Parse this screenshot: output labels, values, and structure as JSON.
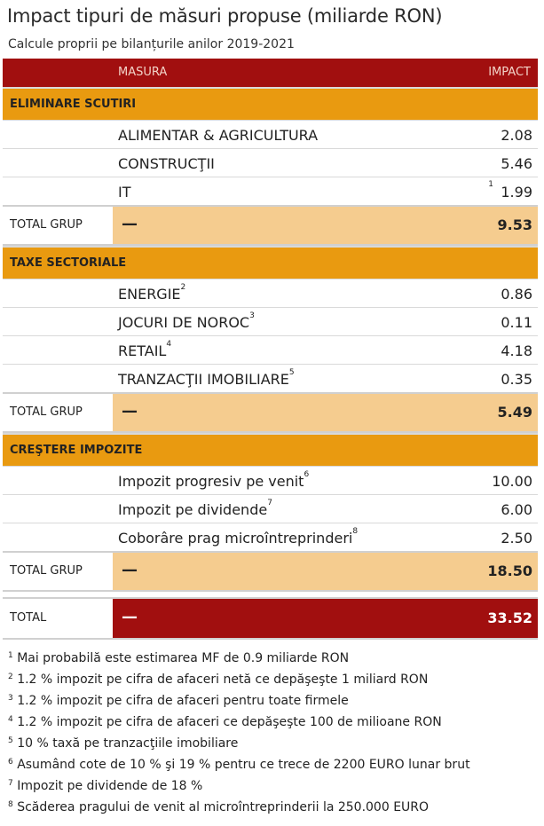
{
  "title": "Impact tipuri de măsuri propuse (miliarde RON)",
  "subtitle": "Calcule proprii pe bilanțurile anilor 2019-2021",
  "header": {
    "col1": "MASURA",
    "col2": "IMPACT"
  },
  "groups": [
    {
      "name": "ELIMINARE SCUTIRI",
      "rows": [
        {
          "label": "ALIMENTAR & AGRICULTURA",
          "sup": "",
          "value": "2.08"
        },
        {
          "label": "CONSTRUCŢII",
          "sup": "",
          "value": "5.46"
        },
        {
          "label": "IT",
          "sup": "1",
          "value": "1.99"
        }
      ],
      "total_label": "TOTAL GRUP",
      "dash": "—",
      "total": "9.53"
    },
    {
      "name": "TAXE SECTORIALE",
      "rows": [
        {
          "label": "ENERGIE",
          "sup": "2",
          "value": "0.86"
        },
        {
          "label": "JOCURI DE NOROC",
          "sup": "3",
          "value": "0.11"
        },
        {
          "label": "RETAIL",
          "sup": "4",
          "value": "4.18"
        },
        {
          "label": "TRANZACŢII IMOBILIARE",
          "sup": "5",
          "value": "0.35"
        }
      ],
      "total_label": "TOTAL GRUP",
      "dash": "—",
      "total": "5.49"
    },
    {
      "name": "CREŞTERE IMPOZITE",
      "rows": [
        {
          "label": "Impozit progresiv pe venit",
          "sup": "6",
          "value": "10.00"
        },
        {
          "label": "Impozit pe dividende",
          "sup": "7",
          "value": "6.00"
        },
        {
          "label": "Coborâre prag microîntreprinderi",
          "sup": "8",
          "value": "2.50"
        }
      ],
      "total_label": "TOTAL GRUP",
      "dash": "—",
      "total": "18.50"
    }
  ],
  "grand_total": {
    "label": "TOTAL",
    "dash": "—",
    "value": "33.52"
  },
  "notes": [
    {
      "n": "1",
      "text": "Mai probabilă este estimarea MF de 0.9 miliarde RON"
    },
    {
      "n": "2",
      "text": "1.2 % impozit pe cifra de afaceri netă ce depăşeşte 1 miliard RON"
    },
    {
      "n": "3",
      "text": "1.2 % impozit pe cifra de afaceri pentru toate firmele"
    },
    {
      "n": "4",
      "text": "1.2 % impozit pe cifra de afaceri ce depăşeşte 100 de milioane RON"
    },
    {
      "n": "5",
      "text": "10 % taxă pe tranzacţiile imobiliare"
    },
    {
      "n": "6",
      "text": "Asumând cote de 10 % şi 19 % pentru ce trece de 2200 EURO lunar brut"
    },
    {
      "n": "7",
      "text": "Impozit pe dividende de 18 %"
    },
    {
      "n": "8",
      "text": "Scăderea pragului de venit al microîntreprinderii la 250.000 EURO"
    }
  ]
}
